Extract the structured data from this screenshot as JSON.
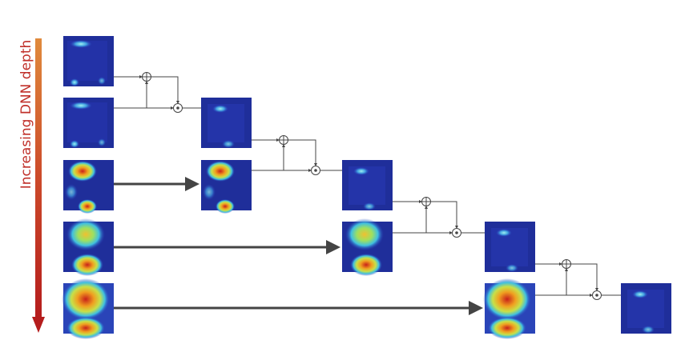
{
  "axis_label": "Increasing DNN depth"
}
